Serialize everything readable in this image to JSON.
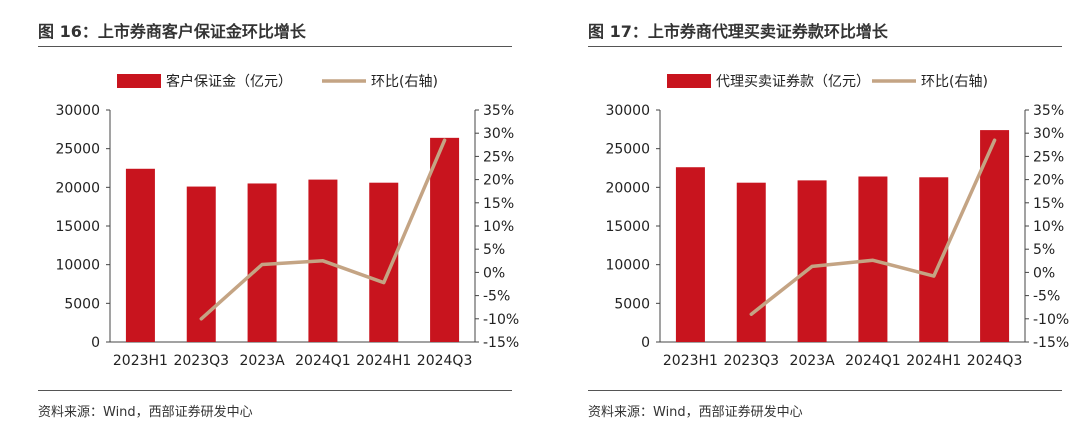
{
  "panels": [
    {
      "title": "图 16：上市券商客户保证金环比增长",
      "source": "资料来源：Wind，西部证券研发中心",
      "chart_data": {
        "type": "bar+line",
        "categories": [
          "2023H1",
          "2023Q3",
          "2023A",
          "2024Q1",
          "2024H1",
          "2024Q3"
        ],
        "series": [
          {
            "name": "客户保证金（亿元）",
            "type": "bar",
            "axis": "left",
            "values": [
              22400,
              20100,
              20500,
              21000,
              20600,
              26400
            ]
          },
          {
            "name": "环比(右轴)",
            "type": "line",
            "axis": "right",
            "values": [
              null,
              -10.0,
              1.7,
              2.5,
              -2.2,
              28.5
            ]
          }
        ],
        "left_axis": {
          "min": 0,
          "max": 30000,
          "ticks": [
            0,
            5000,
            10000,
            15000,
            20000,
            25000,
            30000
          ]
        },
        "right_axis": {
          "min": -15,
          "max": 35,
          "ticks": [
            "-15%",
            "-10%",
            "-5%",
            "0%",
            "5%",
            "10%",
            "15%",
            "20%",
            "25%",
            "30%",
            "35%"
          ]
        },
        "legend_position": "top",
        "colors": {
          "bar": "#c8141e",
          "line": "#c4a484"
        }
      }
    },
    {
      "title": "图 17：上市券商代理买卖证券款环比增长",
      "source": "资料来源：Wind，西部证券研发中心",
      "chart_data": {
        "type": "bar+line",
        "categories": [
          "2023H1",
          "2023Q3",
          "2023A",
          "2024Q1",
          "2024H1",
          "2024Q3"
        ],
        "series": [
          {
            "name": "代理买卖证券款（亿元）",
            "type": "bar",
            "axis": "left",
            "values": [
              22600,
              20600,
              20900,
              21400,
              21300,
              27400
            ]
          },
          {
            "name": "环比(右轴)",
            "type": "line",
            "axis": "right",
            "values": [
              null,
              -9.0,
              1.3,
              2.6,
              -0.8,
              28.5
            ]
          }
        ],
        "left_axis": {
          "min": 0,
          "max": 30000,
          "ticks": [
            0,
            5000,
            10000,
            15000,
            20000,
            25000,
            30000
          ]
        },
        "right_axis": {
          "min": -15,
          "max": 35,
          "ticks": [
            "-15%",
            "-10%",
            "-5%",
            "0%",
            "5%",
            "10%",
            "15%",
            "20%",
            "25%",
            "30%",
            "35%"
          ]
        },
        "legend_position": "top",
        "colors": {
          "bar": "#c8141e",
          "line": "#c4a484"
        }
      }
    }
  ]
}
